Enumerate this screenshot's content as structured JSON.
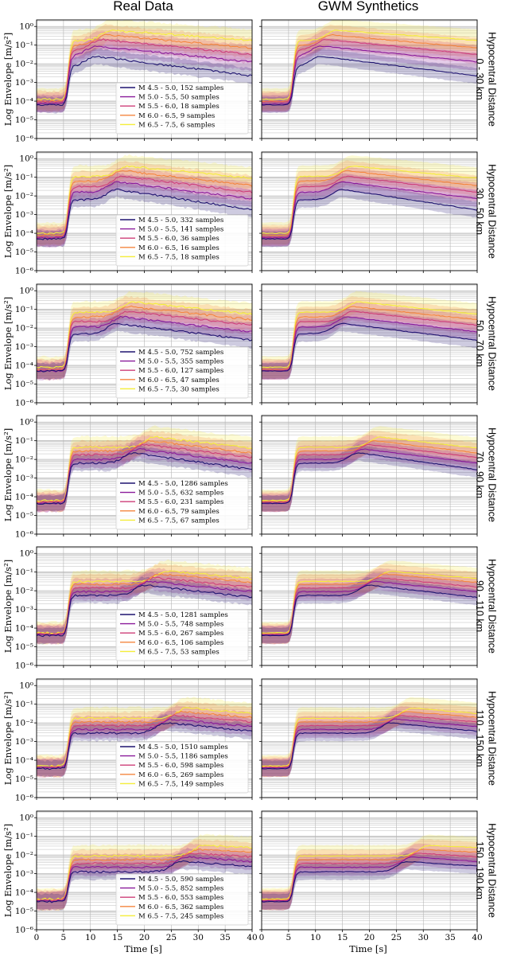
{
  "figure": {
    "column_titles": [
      "Real Data",
      "GWM Synthetics"
    ],
    "ylabel": "Log Envelope [m/s²]",
    "xlabel": "Time [s]",
    "row_label_prefix": "Hypocentral Distance"
  },
  "colors": {
    "series": [
      "#1f1470",
      "#8a1a9b",
      "#cf3f7a",
      "#f5863f",
      "#f5ee3b"
    ],
    "grid": "#b5b5b5",
    "axis": "#000000"
  },
  "chart_data": {
    "type": "line",
    "title": "",
    "xlabel": "Time [s]",
    "ylabel": "Log Envelope [m/s²]",
    "xlim": [
      0,
      40
    ],
    "ylim_exponent": [
      -6,
      0.35
    ],
    "yscale": "log",
    "grid": true,
    "x_ticks": [
      "0",
      "5",
      "10",
      "15",
      "20",
      "25",
      "30",
      "35",
      "40"
    ],
    "y_ticks": [
      "10⁻⁶",
      "10⁻⁵",
      "10⁻⁴",
      "10⁻³",
      "10⁻²",
      "10⁻¹",
      "10⁰"
    ],
    "magnitude_bins": [
      "M 4.5 - 5.0",
      "M 5.0 - 5.5",
      "M 5.5 - 6.0",
      "M 6.0 - 6.5",
      "M 6.5 - 7.5"
    ],
    "panels": [
      {
        "distance": "0 - 30 km",
        "counts": [
          152,
          50,
          18,
          9,
          6
        ],
        "pre_log": [
          -4.2,
          -4.15,
          -4.05,
          -4.0,
          -3.9
        ],
        "peak_t": [
          11,
          11,
          12,
          13,
          14
        ],
        "peak_log": [
          -1.6,
          -1.05,
          -0.7,
          -0.45,
          -0.2
        ],
        "end_log": [
          -2.65,
          -1.9,
          -1.5,
          -1.15,
          -0.75
        ]
      },
      {
        "distance": "30 - 50 km",
        "counts": [
          332,
          141,
          36,
          16,
          18
        ],
        "pre_log": [
          -4.3,
          -4.25,
          -4.2,
          -4.1,
          -4.0
        ],
        "peak_t": [
          15,
          15,
          16,
          16,
          17
        ],
        "peak_log": [
          -1.65,
          -1.25,
          -0.95,
          -0.65,
          -0.4
        ],
        "end_log": [
          -2.75,
          -2.15,
          -1.8,
          -1.45,
          -1.05
        ]
      },
      {
        "distance": "50 - 70 km",
        "counts": [
          752,
          355,
          127,
          47,
          30
        ],
        "pre_log": [
          -4.3,
          -4.3,
          -4.25,
          -4.2,
          -4.1
        ],
        "peak_t": [
          15,
          16,
          17,
          17,
          18
        ],
        "peak_log": [
          -1.75,
          -1.4,
          -1.1,
          -0.85,
          -0.6
        ],
        "end_log": [
          -2.65,
          -2.2,
          -1.85,
          -1.55,
          -1.25
        ]
      },
      {
        "distance": "70 - 90 km",
        "counts": [
          1286,
          632,
          231,
          79,
          67
        ],
        "pre_log": [
          -4.35,
          -4.35,
          -4.3,
          -4.25,
          -4.2
        ],
        "peak_t": [
          18,
          19,
          20,
          21,
          22
        ],
        "peak_log": [
          -1.65,
          -1.45,
          -1.2,
          -1.0,
          -0.8
        ],
        "end_log": [
          -2.55,
          -2.2,
          -1.9,
          -1.65,
          -1.4
        ]
      },
      {
        "distance": "90 - 110 km",
        "counts": [
          1281,
          748,
          267,
          106,
          53
        ],
        "pre_log": [
          -4.4,
          -4.35,
          -4.35,
          -4.3,
          -4.25
        ],
        "peak_t": [
          20,
          21,
          22,
          23,
          24
        ],
        "peak_log": [
          -1.7,
          -1.5,
          -1.3,
          -1.1,
          -0.95
        ],
        "end_log": [
          -2.35,
          -2.05,
          -1.8,
          -1.55,
          -1.35
        ]
      },
      {
        "distance": "110 - 150 km",
        "counts": [
          1510,
          1186,
          598,
          269,
          149
        ],
        "pre_log": [
          -4.45,
          -4.4,
          -4.4,
          -4.35,
          -4.3
        ],
        "peak_t": [
          24,
          25,
          26,
          27,
          28
        ],
        "peak_log": [
          -2.0,
          -1.8,
          -1.6,
          -1.4,
          -1.2
        ],
        "end_log": [
          -2.45,
          -2.2,
          -1.95,
          -1.7,
          -1.5
        ]
      },
      {
        "distance": "150 - 190 km",
        "counts": [
          590,
          852,
          553,
          362,
          245
        ],
        "pre_log": [
          -4.5,
          -4.45,
          -4.45,
          -4.4,
          -4.35
        ],
        "peak_t": [
          27,
          28,
          29,
          30,
          31
        ],
        "peak_log": [
          -2.35,
          -2.1,
          -1.9,
          -1.7,
          -1.5
        ],
        "end_log": [
          -2.6,
          -2.35,
          -2.1,
          -1.85,
          -1.6
        ]
      }
    ]
  }
}
